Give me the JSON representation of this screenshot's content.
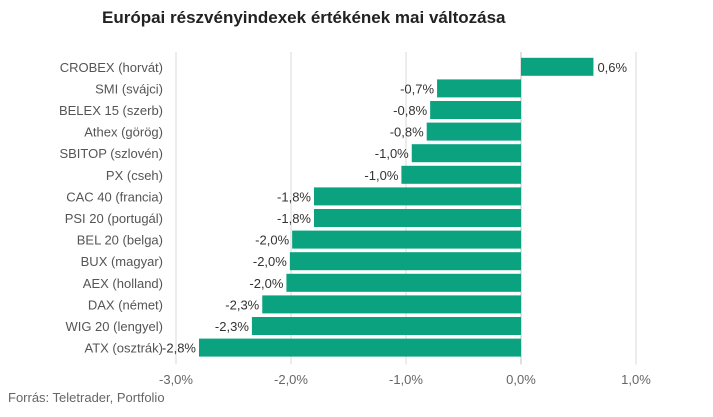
{
  "chart_data": {
    "type": "bar",
    "orientation": "horizontal",
    "title": "Európai részvényindexek értékének mai változása",
    "categories": [
      "CROBEX (horvát)",
      "SMI (svájci)",
      "BELEX 15 (szerb)",
      "Athex (görög)",
      "SBITOP (szlovén)",
      "PX (cseh)",
      "CAC 40 (francia)",
      "PSI 20 (portugál)",
      "BEL 20 (belga)",
      "BUX (magyar)",
      "AEX (holland)",
      "DAX (német)",
      "WIG 20 (lengyel)",
      "ATX (osztrák)"
    ],
    "values": [
      0.6,
      -0.7,
      -0.8,
      -0.8,
      -1.0,
      -1.0,
      -1.8,
      -1.8,
      -2.0,
      -2.0,
      -2.0,
      -2.3,
      -2.3,
      -2.8
    ],
    "bar_values": [
      0.63,
      -0.73,
      -0.79,
      -0.82,
      -0.95,
      -1.04,
      -1.8,
      -1.8,
      -1.99,
      -2.01,
      -2.04,
      -2.25,
      -2.34,
      -2.8
    ],
    "value_labels": [
      "0,6%",
      "-0,7%",
      "-0,8%",
      "-0,8%",
      "-1,0%",
      "-1,0%",
      "-1,8%",
      "-1,8%",
      "-2,0%",
      "-2,0%",
      "-2,0%",
      "-2,3%",
      "-2,3%",
      "-2,8%"
    ],
    "xlim": [
      -3.0,
      1.0
    ],
    "x_ticks": [
      -3.0,
      -2.0,
      -1.0,
      0.0,
      1.0
    ],
    "x_tick_labels": [
      "-3,0%",
      "-2,0%",
      "-1,0%",
      "0,0%",
      "1,0%"
    ],
    "xlabel": "",
    "ylabel": "",
    "grid": "vertical",
    "bar_color": "#0ba37f",
    "grid_color": "#d9d9d9",
    "source": "Forrás: Teletrader, Portfolio"
  }
}
